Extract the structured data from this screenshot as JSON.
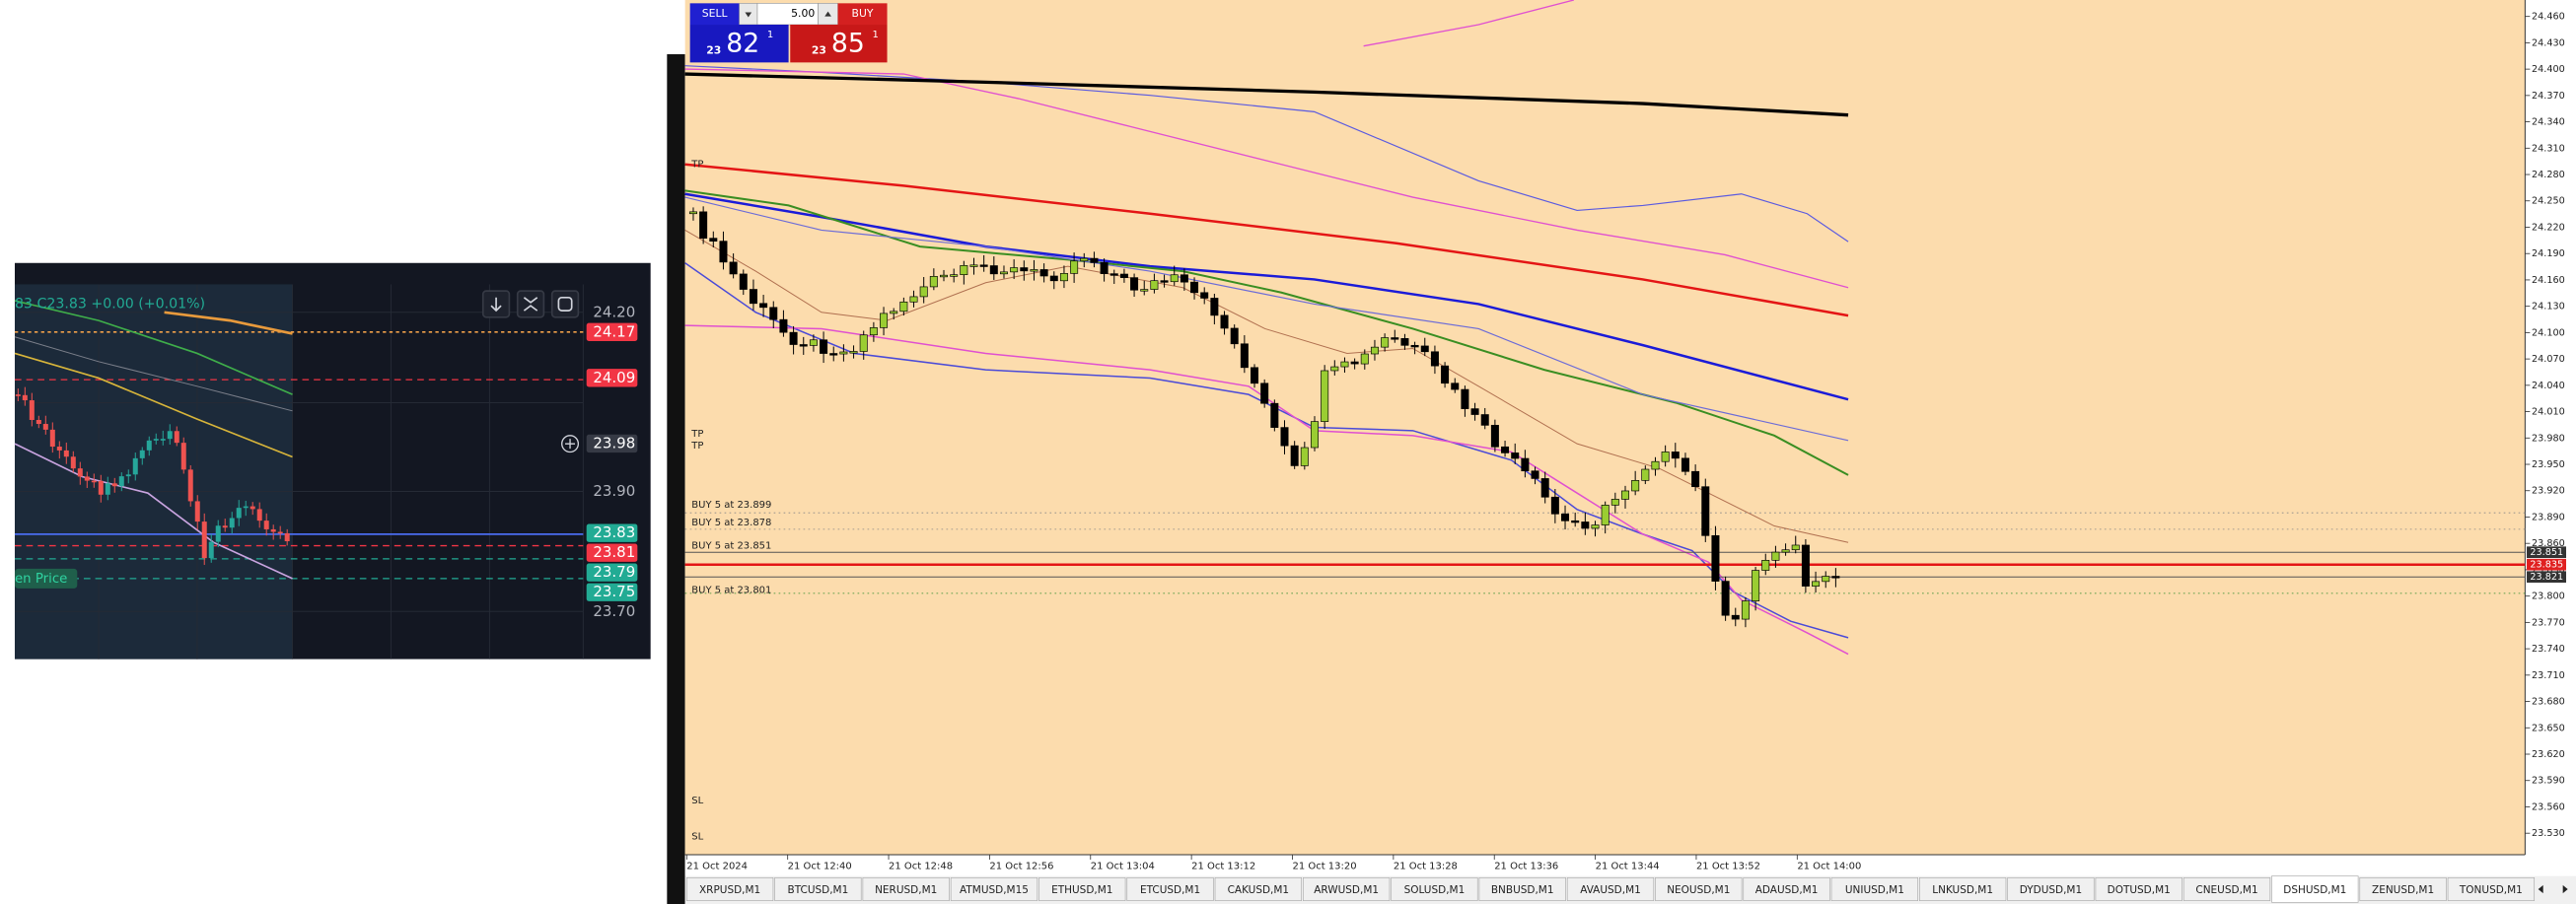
{
  "left_chart": {
    "header": "83 C23.83 +0.00 (+0.01%)",
    "open_price_label": "en Price",
    "price_labels": [
      {
        "text": "24.20",
        "color": null
      },
      {
        "text": "24.17",
        "color": "#f23645"
      },
      {
        "text": "24.09",
        "color": "#f23645"
      },
      {
        "text": "23.98",
        "color": "#363a45"
      },
      {
        "text": "23.90",
        "color": null
      },
      {
        "text": "23.83",
        "color": "#22ab94"
      },
      {
        "text": "23.81",
        "color": "#f23645"
      },
      {
        "text": "23.79",
        "color": "#22ab94"
      },
      {
        "text": "23.75",
        "color": "#22ab94"
      },
      {
        "text": "23.70",
        "color": null
      }
    ]
  },
  "trade_panel": {
    "sell": "SELL",
    "buy": "BUY",
    "volume": "5.00",
    "sell_price": {
      "head": "23",
      "big": "82",
      "sup": "1"
    },
    "buy_price": {
      "head": "23",
      "big": "85",
      "sup": "1"
    }
  },
  "main_chart": {
    "price_axis": [
      "24.460",
      "24.430",
      "24.400",
      "24.370",
      "24.340",
      "24.310",
      "24.280",
      "24.250",
      "24.220",
      "24.190",
      "24.160",
      "24.130",
      "24.100",
      "24.070",
      "24.040",
      "24.010",
      "23.980",
      "23.950",
      "23.920",
      "23.890",
      "23.860",
      "23.830",
      "23.800",
      "23.770",
      "23.740",
      "23.710",
      "23.680",
      "23.650",
      "23.620",
      "23.590",
      "23.560",
      "23.530"
    ],
    "price_badges": [
      {
        "text": "23.851",
        "color": "#333333"
      },
      {
        "text": "23.835",
        "color": "#e02020"
      },
      {
        "text": "23.821",
        "color": "#333333"
      }
    ],
    "time_axis": [
      "21 Oct 2024",
      "21 Oct 12:40",
      "21 Oct 12:48",
      "21 Oct 12:56",
      "21 Oct 13:04",
      "21 Oct 13:12",
      "21 Oct 13:20",
      "21 Oct 13:28",
      "21 Oct 13:36",
      "21 Oct 13:44",
      "21 Oct 13:52",
      "21 Oct 14:00"
    ],
    "labels": {
      "tp_top": "TP",
      "tp_mid_1": "TP",
      "tp_mid_2": "TP",
      "orders": [
        "BUY 5 at 23.899",
        "BUY 5 at 23.878",
        "BUY 5 at 23.851",
        "BUY 5 at 23.801"
      ],
      "sl_1": "SL",
      "sl_2": "SL"
    }
  },
  "tabs": [
    "XRPUSD,M1",
    "BTCUSD,M1",
    "NERUSD,M1",
    "ATMUSD,M15",
    "ETHUSD,M1",
    "ETCUSD,M1",
    "CAKUSD,M1",
    "ARWUSD,M1",
    "SOLUSD,M1",
    "BNBUSD,M1",
    "AVAUSD,M1",
    "NEOUSD,M1",
    "ADAUSD,M1",
    "UNIUSD,M1",
    "LNKUSD,M1",
    "DYDUSD,M1",
    "DOTUSD,M1",
    "CNEUSD,M1",
    "DSHUSD,M1",
    "ZENUSD,M1",
    "TONUSD,M1"
  ],
  "active_tab": 18
}
